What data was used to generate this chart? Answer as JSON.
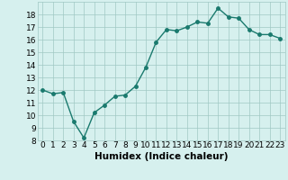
{
  "x": [
    0,
    1,
    2,
    3,
    4,
    5,
    6,
    7,
    8,
    9,
    10,
    11,
    12,
    13,
    14,
    15,
    16,
    17,
    18,
    19,
    20,
    21,
    22,
    23
  ],
  "y": [
    12.0,
    11.7,
    11.8,
    9.5,
    8.2,
    10.2,
    10.8,
    11.5,
    11.6,
    12.3,
    13.8,
    15.8,
    16.8,
    16.7,
    17.0,
    17.4,
    17.3,
    18.5,
    17.8,
    17.7,
    16.8,
    16.4,
    16.4,
    16.1
  ],
  "xlabel": "Humidex (Indice chaleur)",
  "line_color": "#1a7a6e",
  "marker": "o",
  "marker_size": 2.5,
  "bg_color": "#d6f0ee",
  "grid_color": "#a0c8c4",
  "xlim": [
    -0.5,
    23.5
  ],
  "ylim": [
    8,
    19
  ],
  "yticks": [
    8,
    9,
    10,
    11,
    12,
    13,
    14,
    15,
    16,
    17,
    18
  ],
  "xticks": [
    0,
    1,
    2,
    3,
    4,
    5,
    6,
    7,
    8,
    9,
    10,
    11,
    12,
    13,
    14,
    15,
    16,
    17,
    18,
    19,
    20,
    21,
    22,
    23
  ],
  "tick_fontsize": 6.5,
  "xlabel_fontsize": 7.5
}
